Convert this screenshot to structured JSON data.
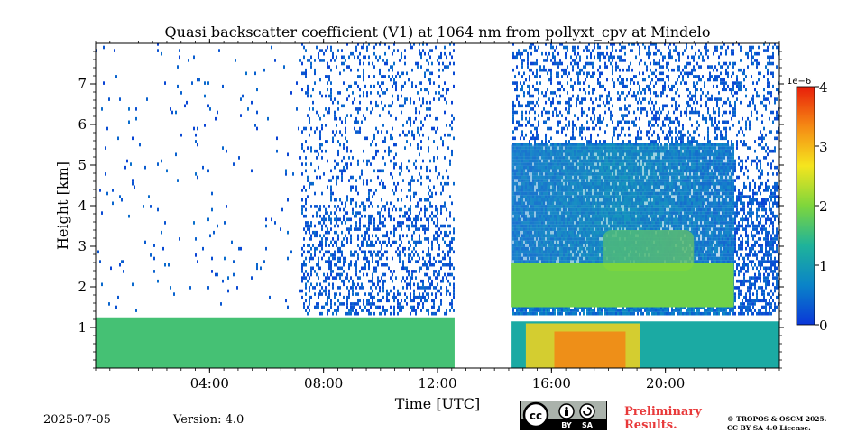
{
  "chart_data": {
    "type": "heatmap",
    "title": "Quasi backscatter coefficient (V1) at 1064 nm from pollyxt_cpv at Mindelo",
    "xlabel": "Time [UTC]",
    "ylabel": "Height [km]",
    "xlim_hours": [
      0,
      24
    ],
    "ylim_km": [
      0,
      8
    ],
    "xticks": [
      {
        "hour": 4,
        "label": "04:00"
      },
      {
        "hour": 8,
        "label": "08:00"
      },
      {
        "hour": 12,
        "label": "12:00"
      },
      {
        "hour": 16,
        "label": "16:00"
      },
      {
        "hour": 20,
        "label": "20:00"
      }
    ],
    "yticks": [
      {
        "km": 1,
        "label": "1"
      },
      {
        "km": 2,
        "label": "2"
      },
      {
        "km": 3,
        "label": "3"
      },
      {
        "km": 4,
        "label": "4"
      },
      {
        "km": 5,
        "label": "5"
      },
      {
        "km": 6,
        "label": "6"
      },
      {
        "km": 7,
        "label": "7"
      }
    ],
    "colorbar": {
      "range": [
        0,
        4
      ],
      "scale_label": "1e−6",
      "ticks": [
        {
          "value": 0,
          "label": "0"
        },
        {
          "value": 1,
          "label": "1"
        },
        {
          "value": 2,
          "label": "2"
        },
        {
          "value": 3,
          "label": "3"
        },
        {
          "value": 4,
          "label": "4"
        }
      ],
      "colormap": [
        "#0a36d8",
        "#0a84c8",
        "#1fb39a",
        "#7ed63c",
        "#f5e51e",
        "#f58a14",
        "#e81e0a"
      ]
    },
    "data_gap_hours": [
      12.6,
      14.6
    ],
    "layers": [
      {
        "name": "boundary layer",
        "t_start": 0,
        "t_end": 12.6,
        "h_bottom": 0,
        "h_top": 1.25,
        "value": 1.6
      },
      {
        "name": "boundary layer",
        "t_start": 14.6,
        "t_end": 24,
        "h_bottom": 0,
        "h_top": 1.15,
        "value": 1.2
      },
      {
        "name": "aerosol layer",
        "t_start": 14.6,
        "t_end": 22.4,
        "h_bottom": 1.5,
        "h_top": 2.6,
        "value": 1.9
      },
      {
        "name": "elevated layer",
        "t_start": 17.8,
        "t_end": 21.0,
        "h_bottom": 2.4,
        "h_top": 3.4,
        "value": 2.0
      },
      {
        "name": "lofted aerosol",
        "t_start": 14.6,
        "t_end": 22.4,
        "h_bottom": 2.6,
        "h_top": 5.5,
        "value": 0.5
      }
    ]
  },
  "footer": {
    "date": "2025-07-05",
    "version": "Version: 4.0",
    "cc_by": "BY",
    "cc_sa": "SA",
    "preliminary_line1": "Preliminary",
    "preliminary_line2": "Results.",
    "license_line1": "© TROPOS & OSCM 2025.",
    "license_line2": "CC BY SA 4.0 License."
  }
}
